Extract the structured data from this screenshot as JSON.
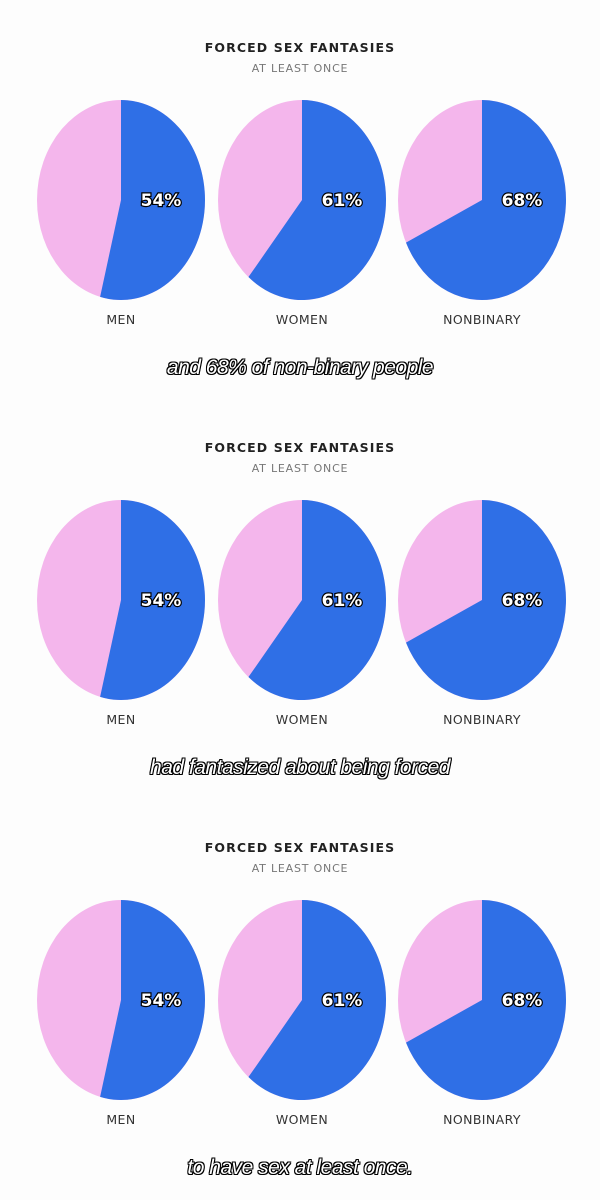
{
  "colors": {
    "yes": "#2f6fe6",
    "no": "#f4b6ec"
  },
  "frames": [
    {
      "caption": "and 68% of non-binary people"
    },
    {
      "caption": "had fantasized about being forced"
    },
    {
      "caption": "to have sex at least once."
    }
  ],
  "chart_data": [
    {
      "type": "pie",
      "title": "FORCED SEX FANTASIES",
      "subtitle": "AT LEAST ONCE",
      "categories": [
        "MEN",
        "WOMEN",
        "NONBINARY"
      ],
      "values": [
        54,
        61,
        68
      ],
      "value_labels": [
        "54%",
        "61%",
        "68%"
      ]
    },
    {
      "type": "pie",
      "title": "FORCED SEX FANTASIES",
      "subtitle": "AT LEAST ONCE",
      "categories": [
        "MEN",
        "WOMEN",
        "NONBINARY"
      ],
      "values": [
        54,
        61,
        68
      ],
      "value_labels": [
        "54%",
        "61%",
        "68%"
      ]
    },
    {
      "type": "pie",
      "title": "FORCED SEX FANTASIES",
      "subtitle": "AT LEAST ONCE",
      "categories": [
        "MEN",
        "WOMEN",
        "NONBINARY"
      ],
      "values": [
        54,
        61,
        68
      ],
      "value_labels": [
        "54%",
        "61%",
        "68%"
      ]
    }
  ]
}
